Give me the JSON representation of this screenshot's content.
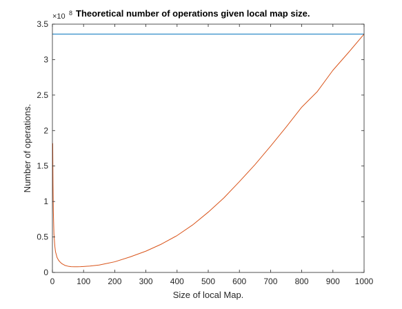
{
  "chart_data": {
    "type": "line",
    "title": "Theoretical number of operations given local map size.",
    "xlabel": "Size of local Map.",
    "ylabel": "Number of operations.",
    "xlim": [
      0,
      1000
    ],
    "ylim": [
      0,
      3.5
    ],
    "y_multiplier_base": "×10",
    "y_multiplier_exponent": "8",
    "x_ticks": [
      "0",
      "100",
      "200",
      "300",
      "400",
      "500",
      "600",
      "700",
      "800",
      "900",
      "1000"
    ],
    "y_ticks": [
      "0",
      "0.5",
      "1",
      "1.5",
      "2",
      "2.5",
      "3",
      "3.5"
    ],
    "grid": false,
    "box": true,
    "series": [
      {
        "color": "#0072BD",
        "kind": "constant",
        "x": [
          0,
          1000
        ],
        "y": [
          3.36,
          3.36
        ]
      },
      {
        "color": "#D95319",
        "kind": "curve",
        "x": [
          1,
          2,
          3,
          5,
          8,
          10,
          15,
          20,
          25,
          30,
          40,
          50,
          60,
          70,
          80,
          90,
          100,
          120,
          150,
          200,
          250,
          300,
          350,
          400,
          450,
          500,
          550,
          600,
          650,
          700,
          750,
          800,
          850,
          900,
          950,
          1000
        ],
        "y": [
          1.82,
          1.23,
          0.86,
          0.54,
          0.36,
          0.29,
          0.21,
          0.17,
          0.145,
          0.125,
          0.1,
          0.088,
          0.082,
          0.08,
          0.08,
          0.081,
          0.084,
          0.09,
          0.105,
          0.15,
          0.22,
          0.3,
          0.4,
          0.52,
          0.67,
          0.85,
          1.05,
          1.28,
          1.52,
          1.78,
          2.05,
          2.33,
          2.55,
          2.85,
          3.1,
          3.36
        ]
      }
    ]
  }
}
